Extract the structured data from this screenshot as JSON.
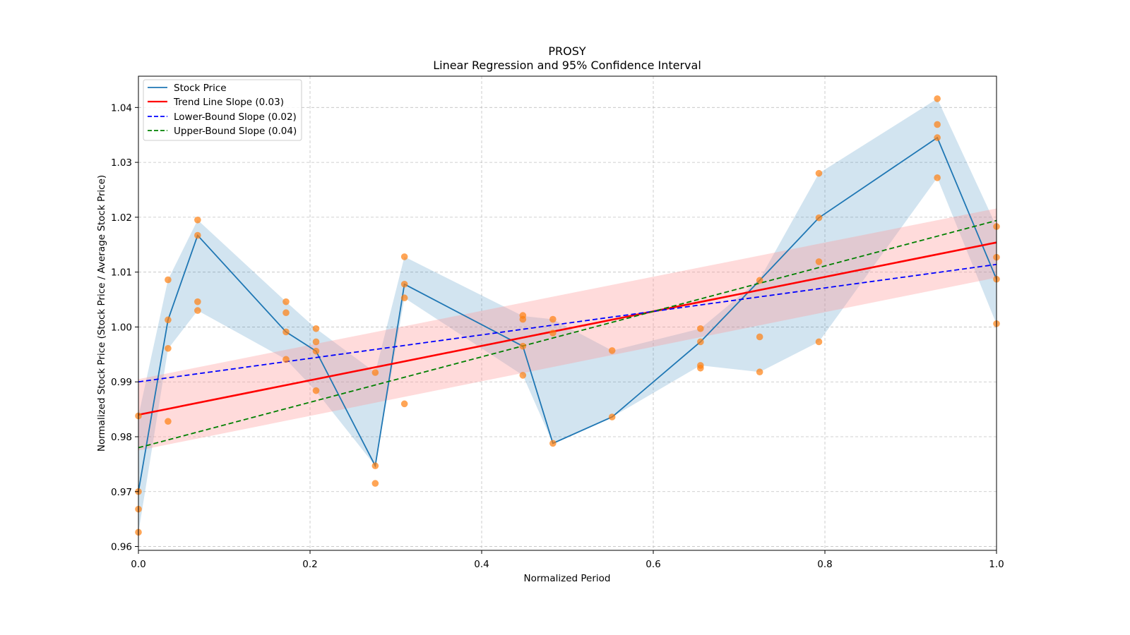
{
  "chart_data": {
    "type": "line",
    "title": "PROSY",
    "subtitle": "Linear Regression and 95% Confidence Interval",
    "xlabel": "Normalized Period",
    "ylabel": "Normalized Stock Price (Stock Price / Average Stock Price)",
    "xlim": [
      0.0,
      1.0
    ],
    "ylim": [
      0.9593,
      1.0457
    ],
    "xticks": [
      0.0,
      0.2,
      0.4,
      0.6,
      0.8,
      1.0
    ],
    "xtick_labels": [
      "0.0",
      "0.2",
      "0.4",
      "0.6",
      "0.8",
      "1.0"
    ],
    "yticks": [
      0.96,
      0.97,
      0.98,
      0.99,
      1.0,
      1.01,
      1.02,
      1.03,
      1.04
    ],
    "ytick_labels": [
      "0.96",
      "0.97",
      "0.98",
      "0.99",
      "1.00",
      "1.01",
      "1.02",
      "1.03",
      "1.04"
    ],
    "grid": true,
    "legend_position": "top-left",
    "legend": [
      {
        "label": "Stock Price",
        "color": "#1f77b4",
        "style": "solid"
      },
      {
        "label": "Trend Line Slope (0.03)",
        "color": "#ff0000",
        "style": "solid"
      },
      {
        "label": "Lower-Bound Slope (0.02)",
        "color": "#0000ff",
        "style": "dashed"
      },
      {
        "label": "Upper-Bound Slope (0.04)",
        "color": "#008000",
        "style": "dashed"
      }
    ],
    "colors": {
      "stock_line": "#1f77b4",
      "stock_band": "#1f77b4",
      "trend": "#ff0000",
      "trend_band": "#ff9999",
      "lower": "#0000ff",
      "upper": "#008000",
      "scatter": "#ff7f0e",
      "grid": "#b0b0b0"
    },
    "stock_price": {
      "x": [
        0.0,
        0.0345,
        0.069,
        0.172,
        0.207,
        0.276,
        0.31,
        0.448,
        0.483,
        0.552,
        0.655,
        0.724,
        0.793,
        0.931,
        1.0
      ],
      "y": [
        0.97,
        1.0013,
        1.0167,
        0.9991,
        0.9956,
        0.9747,
        1.0078,
        0.9965,
        0.9788,
        0.9836,
        0.9973,
        1.0085,
        1.0199,
        1.0345,
        1.0087
      ],
      "band_lower": [
        0.9625,
        0.996,
        1.003,
        0.9941,
        0.9883,
        0.9747,
        1.0053,
        0.9912,
        0.9788,
        0.9836,
        0.993,
        0.9918,
        0.9973,
        1.0272,
        1.0005
      ],
      "band_upper": [
        0.9838,
        1.0086,
        1.0195,
        1.0046,
        0.9997,
        0.9917,
        1.0128,
        1.002,
        1.0014,
        0.9957,
        0.9997,
        1.0087,
        1.028,
        1.0416,
        1.0183
      ]
    },
    "scatter_points": {
      "x": [
        0.0,
        0.0,
        0.0,
        0.0,
        0.0345,
        0.0345,
        0.0345,
        0.0345,
        0.069,
        0.069,
        0.069,
        0.069,
        0.172,
        0.172,
        0.172,
        0.172,
        0.207,
        0.207,
        0.207,
        0.207,
        0.276,
        0.276,
        0.276,
        0.31,
        0.31,
        0.31,
        0.31,
        0.448,
        0.448,
        0.448,
        0.448,
        0.483,
        0.483,
        0.483,
        0.552,
        0.552,
        0.655,
        0.655,
        0.655,
        0.655,
        0.724,
        0.724,
        0.724,
        0.793,
        0.793,
        0.793,
        0.793,
        0.931,
        0.931,
        0.931,
        0.931,
        1.0,
        1.0,
        1.0,
        1.0
      ],
      "y": [
        0.9838,
        0.97,
        0.9668,
        0.9626,
        1.0086,
        1.0013,
        0.9961,
        0.9828,
        1.0195,
        1.0167,
        1.0046,
        1.003,
        1.0046,
        1.0026,
        0.9991,
        0.9941,
        0.9997,
        0.9973,
        0.9956,
        0.9884,
        0.9917,
        0.9747,
        0.9715,
        1.0128,
        1.0078,
        1.0053,
        0.986,
        1.0021,
        1.0014,
        0.9965,
        0.9912,
        1.0014,
        0.9989,
        0.9788,
        0.9957,
        0.9836,
        0.9997,
        0.9973,
        0.993,
        0.9925,
        1.0085,
        0.9982,
        0.9918,
        1.028,
        1.0199,
        1.0119,
        0.9973,
        1.0416,
        1.0369,
        1.0345,
        1.0272,
        1.0183,
        1.0127,
        1.0087,
        1.0006
      ]
    },
    "trend_line": {
      "x": [
        0.0,
        1.0
      ],
      "y": [
        0.984,
        1.0154
      ],
      "slope": 0.03
    },
    "trend_band": {
      "x": [
        0.0,
        1.0
      ],
      "lower": [
        0.9775,
        1.009
      ],
      "upper": [
        0.9905,
        1.0216
      ]
    },
    "lower_bound_line": {
      "x": [
        0.0,
        1.0
      ],
      "y": [
        0.99,
        1.0114
      ],
      "slope": 0.02
    },
    "upper_bound_line": {
      "x": [
        0.0,
        1.0
      ],
      "y": [
        0.978,
        1.0194
      ],
      "slope": 0.04
    }
  }
}
